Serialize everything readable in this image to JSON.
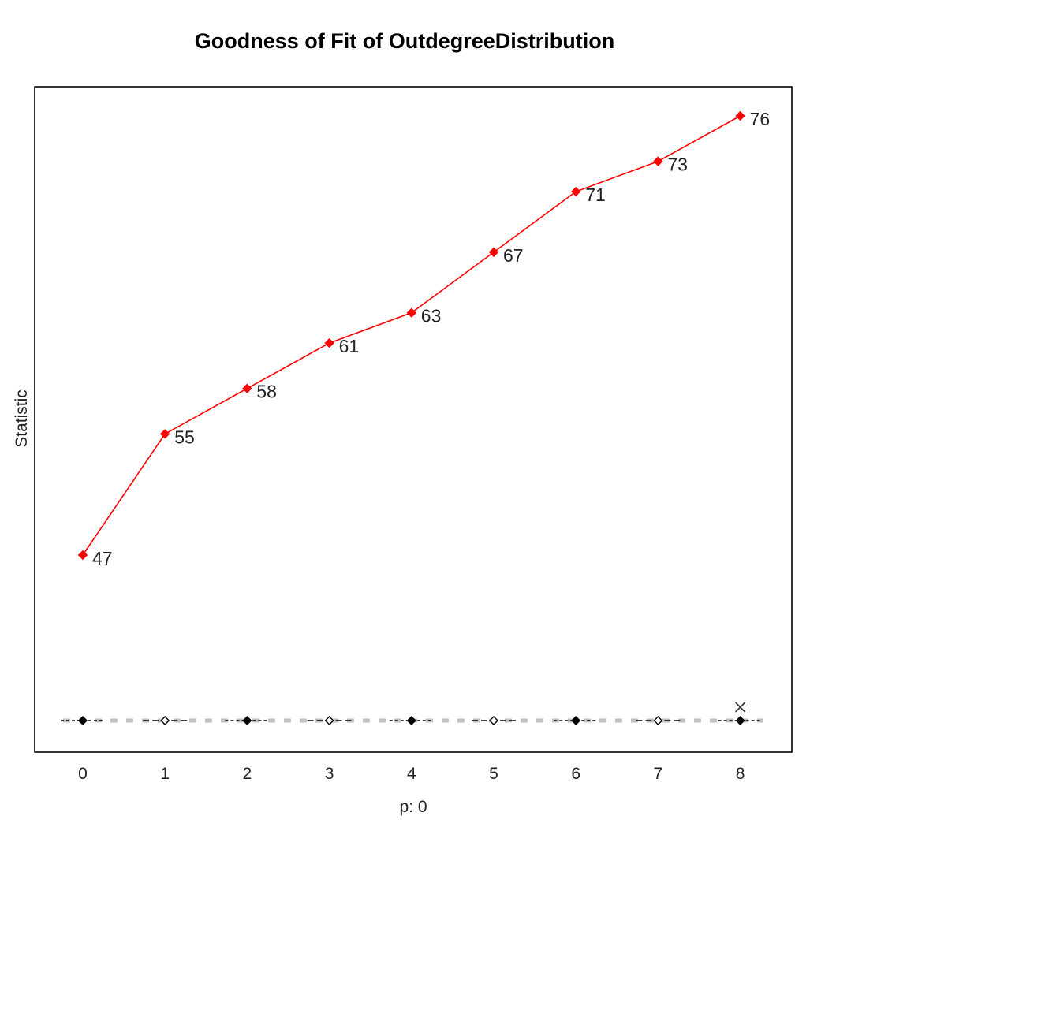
{
  "chart_data": {
    "type": "line",
    "title": "Goodness of Fit of OutdegreeDistribution",
    "xlabel": "p: 0",
    "ylabel": "Statistic",
    "x": [
      0,
      1,
      2,
      3,
      4,
      5,
      6,
      7,
      8
    ],
    "xlim": [
      -0.6,
      8.6
    ],
    "grid": false,
    "series": [
      {
        "values": [
          47,
          55,
          58,
          61,
          63,
          67,
          71,
          73,
          76
        ],
        "color": "#ff0000",
        "labels": [
          "47",
          "55",
          "58",
          "61",
          "63",
          "67",
          "71",
          "73",
          "76"
        ]
      }
    ],
    "simulated_marker": "x",
    "simulated_marker_at": 8,
    "colors": {
      "observed": "#ff0000",
      "simulated": "#000000",
      "band": "#c0c0c0"
    }
  }
}
